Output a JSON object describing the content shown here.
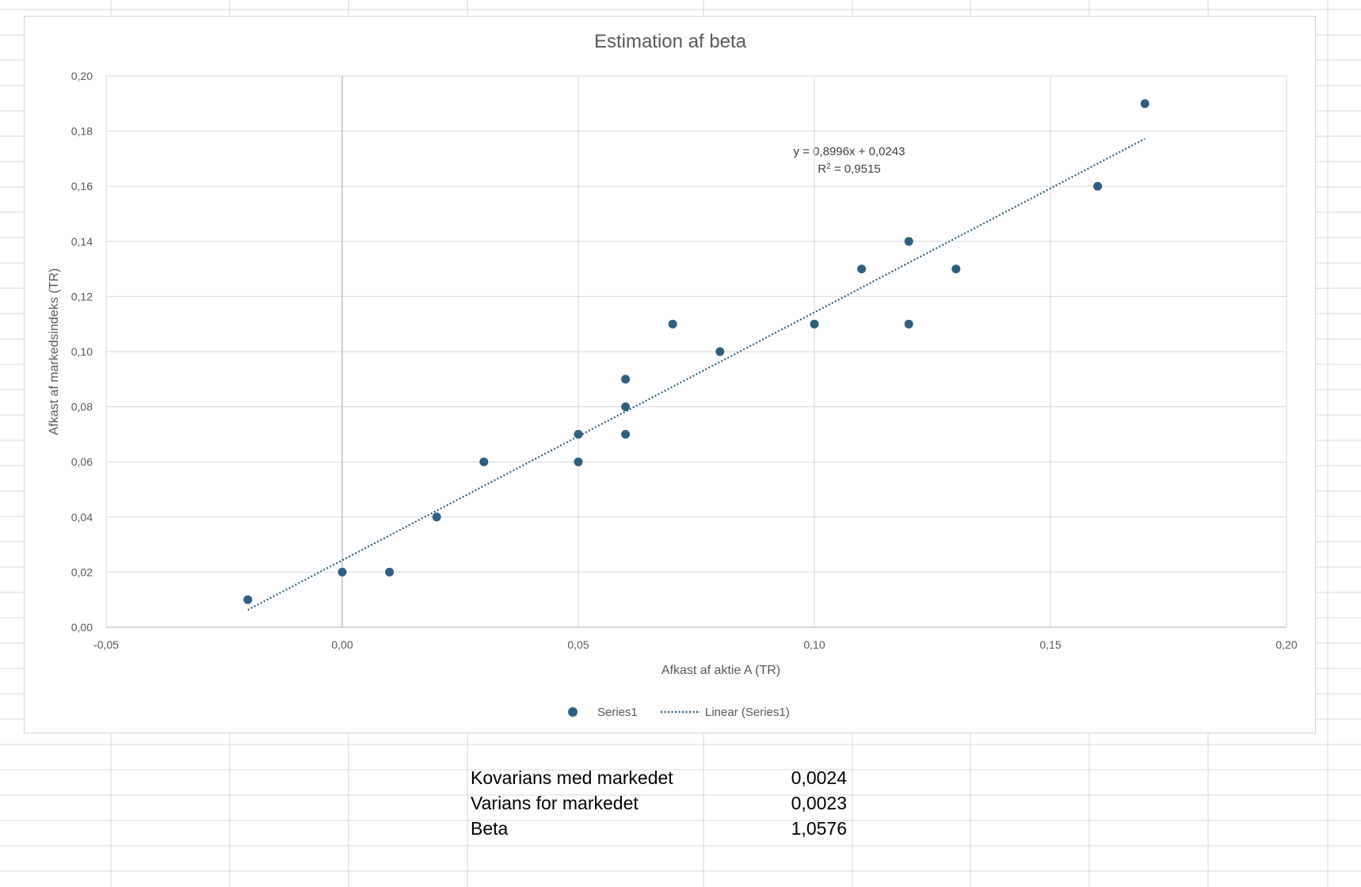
{
  "chart_data": {
    "type": "scatter",
    "title": "Estimation af beta",
    "xlabel": "Afkast af aktie A (TR)",
    "ylabel": "Afkast af markedsindeks (TR)",
    "xlim": [
      -0.05,
      0.2
    ],
    "ylim": [
      0.0,
      0.2
    ],
    "x_ticks": [
      -0.05,
      0.0,
      0.05,
      0.1,
      0.15,
      0.2
    ],
    "y_ticks": [
      0.0,
      0.02,
      0.04,
      0.06,
      0.08,
      0.1,
      0.12,
      0.14,
      0.16,
      0.18,
      0.2
    ],
    "x_tick_labels": [
      "-0,05",
      "0,00",
      "0,05",
      "0,10",
      "0,15",
      "0,20"
    ],
    "y_tick_labels": [
      "0,00",
      "0,02",
      "0,04",
      "0,06",
      "0,08",
      "0,10",
      "0,12",
      "0,14",
      "0,16",
      "0,18",
      "0,20"
    ],
    "grid": true,
    "legend_position": "bottom",
    "series": [
      {
        "name": "Series1",
        "color": "#2e5f7f",
        "points": [
          [
            -0.02,
            0.01
          ],
          [
            0.0,
            0.02
          ],
          [
            0.01,
            0.02
          ],
          [
            0.02,
            0.04
          ],
          [
            0.03,
            0.06
          ],
          [
            0.05,
            0.06
          ],
          [
            0.05,
            0.07
          ],
          [
            0.06,
            0.07
          ],
          [
            0.06,
            0.08
          ],
          [
            0.06,
            0.09
          ],
          [
            0.07,
            0.11
          ],
          [
            0.08,
            0.1
          ],
          [
            0.1,
            0.11
          ],
          [
            0.11,
            0.13
          ],
          [
            0.12,
            0.11
          ],
          [
            0.12,
            0.14
          ],
          [
            0.13,
            0.13
          ],
          [
            0.16,
            0.16
          ],
          [
            0.17,
            0.19
          ]
        ]
      }
    ],
    "trendline": {
      "name": "Linear (Series1)",
      "type": "linear",
      "slope": 0.8996,
      "intercept": 0.0243,
      "x_range": [
        -0.02,
        0.17
      ],
      "color": "#2e5f7f",
      "equation_line1": "y = 0,8996x + 0,0243",
      "equation_line2_prefix": "R",
      "equation_line2_sup": "2",
      "equation_line2_suffix": " = 0,9515"
    }
  },
  "table": {
    "rows": [
      {
        "label": "Kovarians med markedet",
        "value": "0,0024"
      },
      {
        "label": "Varians for markedet",
        "value": "0,0023"
      },
      {
        "label": "Beta",
        "value": "1,0576"
      }
    ]
  }
}
